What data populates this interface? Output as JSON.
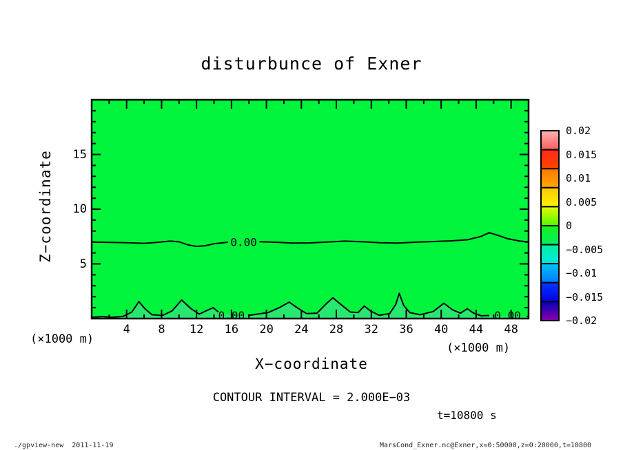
{
  "footer": {
    "left": "./gpview-new  2011-11-19",
    "right": "MarsCond_Exner.nc@Exner,x=0:50000,z=0:20000,t=10800"
  },
  "chart_data": {
    "type": "contour",
    "title": "disturbunce of Exner",
    "xlabel": "X−coordinate",
    "ylabel": "Z−coordinate",
    "x_unit": "(×1000 m)",
    "z_unit": "(×1000 m)",
    "xlim": [
      0,
      50
    ],
    "zlim": [
      0,
      20
    ],
    "x_major_ticks": [
      4,
      8,
      12,
      16,
      20,
      24,
      28,
      32,
      36,
      40,
      44,
      48
    ],
    "x_minor_ticks": [
      2,
      6,
      10,
      14,
      18,
      22,
      26,
      30,
      34,
      38,
      42,
      46
    ],
    "z_major_ticks": [
      5,
      10,
      15
    ],
    "z_minor_ticks": [
      1,
      2,
      3,
      4,
      6,
      7,
      8,
      9,
      11,
      12,
      13,
      14,
      16,
      17,
      18,
      19
    ],
    "contour_interval_label": "CONTOUR INTERVAL = 2.000E−03",
    "time_label": "t=10800 s",
    "contour_level_label": "0.00",
    "fill_color": "#00f43c",
    "bump_fill_color": "#28e76e",
    "contour_labels": [
      {
        "x": 17.4,
        "z": 7.0
      },
      {
        "x": 16.0,
        "z": 0.33
      },
      {
        "x": 47.6,
        "z": 0.33
      }
    ],
    "contours": [
      {
        "level": "0.00",
        "segments": [
          [
            [
              0,
              7.0
            ],
            [
              2,
              6.97
            ],
            [
              4,
              6.93
            ],
            [
              6,
              6.88
            ],
            [
              7.5,
              6.96
            ],
            [
              9,
              7.08
            ],
            [
              10,
              7.02
            ],
            [
              11,
              6.74
            ],
            [
              12,
              6.6
            ],
            [
              13,
              6.66
            ],
            [
              14,
              6.84
            ],
            [
              15.6,
              6.98
            ]
          ],
          [
            [
              19.2,
              7.02
            ],
            [
              21,
              6.98
            ],
            [
              23,
              6.9
            ],
            [
              25,
              6.92
            ],
            [
              27,
              7.0
            ],
            [
              29,
              7.08
            ],
            [
              31,
              7.02
            ],
            [
              33,
              6.94
            ],
            [
              35,
              6.9
            ],
            [
              37,
              6.98
            ],
            [
              39,
              7.04
            ],
            [
              41,
              7.1
            ],
            [
              43,
              7.2
            ],
            [
              44.5,
              7.5
            ],
            [
              45.5,
              7.85
            ],
            [
              46.6,
              7.58
            ],
            [
              47.6,
              7.3
            ],
            [
              49,
              7.08
            ],
            [
              50,
              7.02
            ]
          ]
        ]
      },
      {
        "level": "0.00",
        "segments": [
          [
            [
              0,
              0.12
            ],
            [
              1.2,
              0.18
            ],
            [
              2.4,
              0.12
            ],
            [
              3.6,
              0.2
            ],
            [
              4.6,
              0.6
            ],
            [
              5.4,
              1.55
            ],
            [
              6.1,
              0.9
            ],
            [
              6.9,
              0.35
            ],
            [
              8.1,
              0.28
            ],
            [
              9.2,
              0.7
            ],
            [
              10.3,
              1.7
            ],
            [
              11.3,
              0.95
            ],
            [
              12.3,
              0.4
            ],
            [
              13.2,
              0.75
            ],
            [
              13.9,
              1.0
            ],
            [
              14.5,
              0.6
            ]
          ],
          [
            [
              17.9,
              0.28
            ],
            [
              18.9,
              0.4
            ],
            [
              20.2,
              0.55
            ],
            [
              21.6,
              1.05
            ],
            [
              22.6,
              1.5
            ],
            [
              23.5,
              1.0
            ],
            [
              24.6,
              0.45
            ],
            [
              25.8,
              0.5
            ],
            [
              26.9,
              1.4
            ],
            [
              27.6,
              1.9
            ],
            [
              28.5,
              1.3
            ],
            [
              29.6,
              0.6
            ],
            [
              30.5,
              0.55
            ],
            [
              31.2,
              1.15
            ],
            [
              31.9,
              0.7
            ],
            [
              32.9,
              0.3
            ],
            [
              34.1,
              0.45
            ],
            [
              34.8,
              1.3
            ],
            [
              35.2,
              2.3
            ],
            [
              35.7,
              1.2
            ],
            [
              36.4,
              0.55
            ],
            [
              37.6,
              0.35
            ],
            [
              39.1,
              0.65
            ],
            [
              40.3,
              1.4
            ],
            [
              41.3,
              0.8
            ],
            [
              42.2,
              0.5
            ],
            [
              43,
              0.9
            ],
            [
              43.7,
              0.5
            ],
            [
              44.6,
              0.25
            ],
            [
              45.5,
              0.28
            ]
          ],
          [
            [
              49.8,
              0.2
            ],
            [
              50,
              0.18
            ]
          ]
        ],
        "fill_points": [
          [
            0,
            0.12
          ],
          [
            1.2,
            0.18
          ],
          [
            2.4,
            0.12
          ],
          [
            3.6,
            0.2
          ],
          [
            4.6,
            0.6
          ],
          [
            5.4,
            1.55
          ],
          [
            6.1,
            0.9
          ],
          [
            6.9,
            0.35
          ],
          [
            8.1,
            0.28
          ],
          [
            9.2,
            0.7
          ],
          [
            10.3,
            1.7
          ],
          [
            11.3,
            0.95
          ],
          [
            12.3,
            0.4
          ],
          [
            13.2,
            0.75
          ],
          [
            13.9,
            1.0
          ],
          [
            14.9,
            0.45
          ],
          [
            16.2,
            0.3
          ],
          [
            17.6,
            0.28
          ],
          [
            18.9,
            0.4
          ],
          [
            20.2,
            0.55
          ],
          [
            21.6,
            1.05
          ],
          [
            22.6,
            1.5
          ],
          [
            23.5,
            1.0
          ],
          [
            24.6,
            0.45
          ],
          [
            25.8,
            0.5
          ],
          [
            26.9,
            1.4
          ],
          [
            27.6,
            1.9
          ],
          [
            28.5,
            1.3
          ],
          [
            29.6,
            0.6
          ],
          [
            30.5,
            0.55
          ],
          [
            31.2,
            1.15
          ],
          [
            31.9,
            0.7
          ],
          [
            32.9,
            0.3
          ],
          [
            34.1,
            0.45
          ],
          [
            34.8,
            1.3
          ],
          [
            35.2,
            2.3
          ],
          [
            35.7,
            1.2
          ],
          [
            36.4,
            0.55
          ],
          [
            37.6,
            0.35
          ],
          [
            39.1,
            0.65
          ],
          [
            40.3,
            1.4
          ],
          [
            41.3,
            0.8
          ],
          [
            42.2,
            0.5
          ],
          [
            43,
            0.9
          ],
          [
            43.7,
            0.5
          ],
          [
            44.6,
            0.25
          ],
          [
            45.6,
            0.28
          ],
          [
            47,
            0.22
          ],
          [
            48.5,
            0.25
          ],
          [
            50,
            0.18
          ]
        ]
      }
    ],
    "colorbar": {
      "labels": [
        "0.02",
        "0.015",
        "0.01",
        "0.005",
        "0",
        "−0.005",
        "−0.01",
        "−0.015",
        "−0.02"
      ],
      "boxes": [
        {
          "from": "#ffb3b3",
          "to": "#ff5c5c"
        },
        {
          "from": "#ff2a1a",
          "to": "#ff4400"
        },
        {
          "from": "#ff7700",
          "to": "#ffaa00"
        },
        {
          "from": "#ffc800",
          "to": "#fef200"
        },
        {
          "from": "#e2fb00",
          "to": "#52f900"
        },
        {
          "from": "#17f317",
          "to": "#00ef66"
        },
        {
          "from": "#00ef9e",
          "to": "#00e9e2"
        },
        {
          "from": "#00c4f4",
          "to": "#0379ff"
        },
        {
          "from": "#0038ff",
          "to": "#0600e8"
        },
        {
          "from": "#0400b4",
          "to": "#8a00aa"
        }
      ]
    }
  }
}
